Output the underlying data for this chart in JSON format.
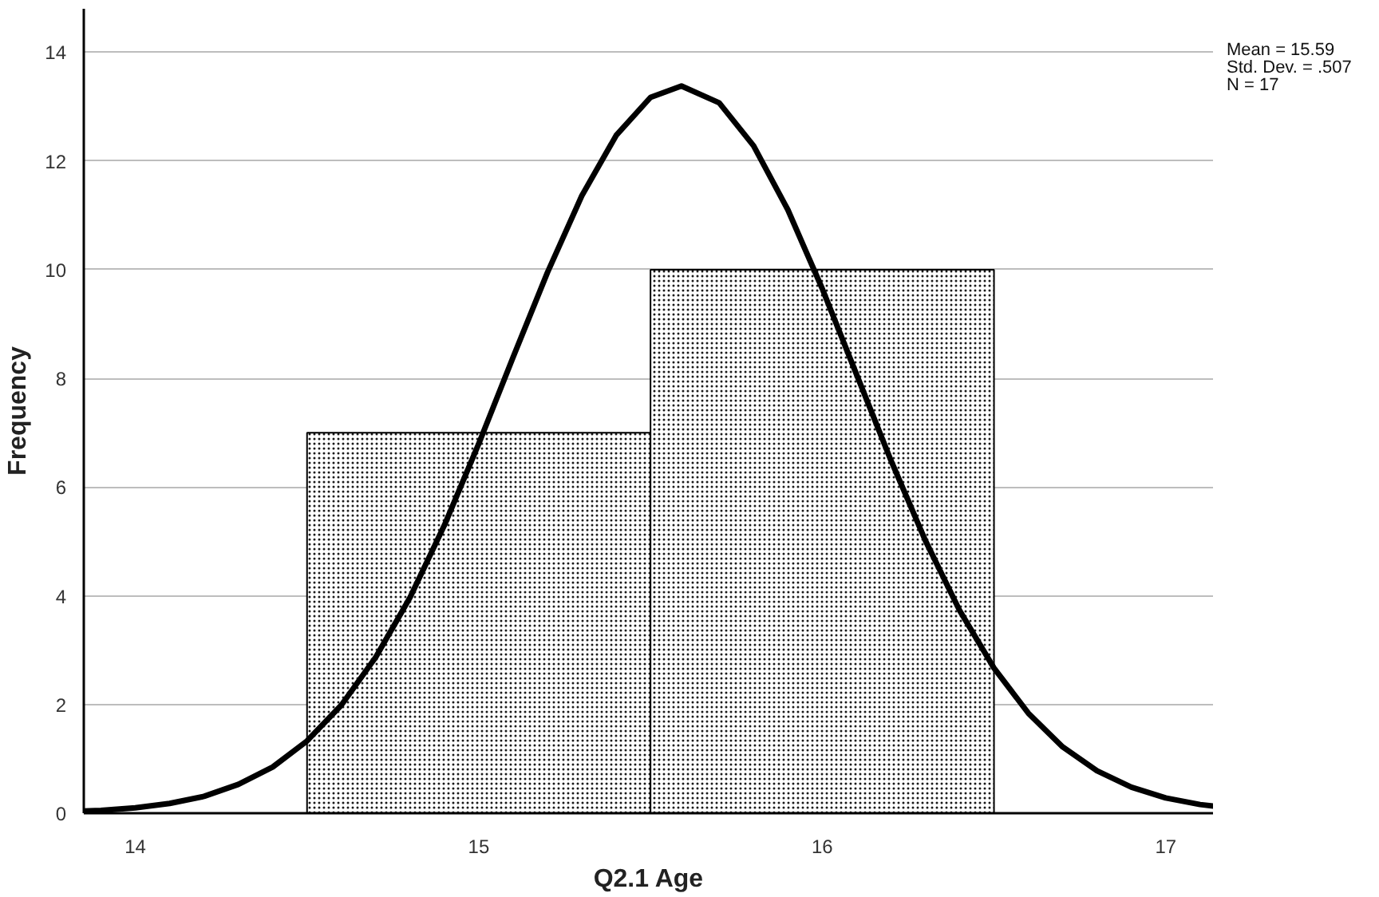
{
  "chart_data": {
    "type": "histogram",
    "xlabel": "Q2.1 Age",
    "ylabel": "Frequency",
    "annotations": [
      "Mean = 15.59",
      "Std. Dev. = .507",
      "N = 17"
    ],
    "series": [
      {
        "bins": [
          14.5,
          15.5,
          16.5
        ],
        "values": [
          7,
          10
        ],
        "color": "#ffffff"
      },
      {
        "type": "line",
        "color": "#000000",
        "x": [
          13.85,
          13.9,
          14.0,
          14.1,
          14.2,
          14.3,
          14.4,
          14.5,
          14.6,
          14.7,
          14.8,
          14.9,
          15.0,
          15.1,
          15.2,
          15.3,
          15.4,
          15.5,
          15.59,
          15.7,
          15.8,
          15.9,
          16.0,
          16.1,
          16.2,
          16.3,
          16.4,
          16.5,
          16.6,
          16.7,
          16.8,
          16.9,
          17.0,
          17.1,
          17.14
        ],
        "values": [
          0.04,
          0.05,
          0.1,
          0.18,
          0.31,
          0.53,
          0.85,
          1.33,
          1.99,
          2.87,
          3.97,
          5.3,
          6.8,
          8.39,
          9.95,
          11.36,
          12.47,
          13.17,
          13.38,
          13.07,
          12.28,
          11.1,
          9.65,
          8.07,
          6.49,
          5.02,
          3.73,
          2.67,
          1.84,
          1.22,
          0.78,
          0.48,
          0.28,
          0.16,
          0.13
        ]
      }
    ],
    "xlim": [
      13.85,
      17.14
    ],
    "xticks": [
      14,
      15,
      16,
      17
    ],
    "ylim": [
      0,
      14.8
    ],
    "yticks": [
      0,
      2,
      4,
      6,
      8,
      10,
      12,
      14
    ],
    "grid": "y"
  }
}
